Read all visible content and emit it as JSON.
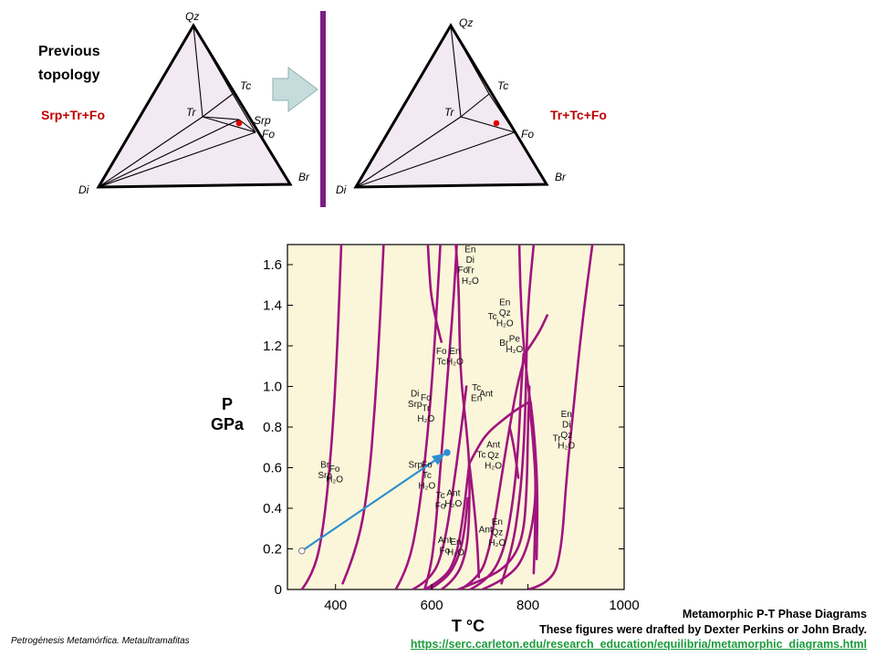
{
  "ternary": {
    "left_heading_line1": "Previous",
    "left_heading_line2": "topology",
    "left_assemblage": "Srp+Tr+Fo",
    "right_assemblage": "Tr+Tc+Fo",
    "vertices": {
      "top": "Qz",
      "left": "Di",
      "right": "Br"
    },
    "phase_labels": {
      "tc": "Tc",
      "tr": "Tr",
      "srp": "Srp",
      "fo": "Fo"
    },
    "colors": {
      "fill": "#f3e9f3",
      "assemblage_text": "#c00000",
      "divider": "#7b1f82",
      "arrow": "#c6dcdc",
      "point": "#e00000"
    }
  },
  "chart_data": {
    "type": "line",
    "title": "",
    "xlabel": "T °C",
    "ylabel_line1": "P",
    "ylabel_line2": "GPa",
    "xlim": [
      300,
      1000
    ],
    "ylim": [
      0,
      1.7
    ],
    "x_ticks": [
      400,
      600,
      800,
      1000
    ],
    "x_tick_labels": [
      "400",
      "600",
      "800",
      "1000"
    ],
    "y_ticks": [
      0,
      0.2,
      0.4,
      0.6,
      0.8,
      1.0,
      1.2,
      1.4,
      1.6
    ],
    "y_tick_labels": [
      "0",
      "0.2",
      "0.4",
      "0.6",
      "0.8",
      "1.0",
      "1.2",
      "1.4",
      "1.6"
    ],
    "grid": false,
    "colors": {
      "background": "#fbf6d9",
      "curve": "#a0147e",
      "path": "#2e8fd0"
    },
    "curves": [
      {
        "points": [
          [
            330,
            0
          ],
          [
            355,
            0.08
          ],
          [
            375,
            0.3
          ],
          [
            392,
            0.7
          ],
          [
            404,
            1.2
          ],
          [
            412,
            1.7
          ]
        ]
      },
      {
        "points": [
          [
            415,
            0.03
          ],
          [
            445,
            0.2
          ],
          [
            468,
            0.5
          ],
          [
            482,
            0.9
          ],
          [
            492,
            1.3
          ],
          [
            500,
            1.7
          ]
        ]
      },
      {
        "points": [
          [
            525,
            0
          ],
          [
            550,
            0.1
          ],
          [
            572,
            0.35
          ],
          [
            590,
            0.72
          ],
          [
            603,
            1.1
          ],
          [
            612,
            1.45
          ],
          [
            618,
            1.7
          ]
        ]
      },
      {
        "points": [
          [
            585,
            0
          ],
          [
            598,
            0.1
          ],
          [
            608,
            0.3
          ],
          [
            618,
            0.6
          ],
          [
            628,
            0.9
          ],
          [
            638,
            1.2
          ],
          [
            646,
            1.45
          ],
          [
            652,
            1.7
          ]
        ]
      },
      {
        "points": [
          [
            560,
            0
          ],
          [
            600,
            0.05
          ],
          [
            625,
            0.2
          ],
          [
            645,
            0.5
          ],
          [
            662,
            0.8
          ],
          [
            672,
            1.0
          ]
        ]
      },
      {
        "points": [
          [
            585,
            0
          ],
          [
            625,
            0.05
          ],
          [
            650,
            0.15
          ],
          [
            665,
            0.35
          ],
          [
            678,
            0.62
          ]
        ]
      },
      {
        "points": [
          [
            595,
            0
          ],
          [
            630,
            0.05
          ],
          [
            655,
            0.15
          ],
          [
            668,
            0.28
          ],
          [
            675,
            0.45
          ]
        ]
      },
      {
        "points": [
          [
            620,
            0
          ],
          [
            650,
            0.05
          ],
          [
            672,
            0.18
          ],
          [
            678,
            0.35
          ],
          [
            679,
            0.6
          ],
          [
            672,
            0.8
          ],
          [
            662,
            1.0
          ],
          [
            658,
            1.2
          ],
          [
            656,
            1.5
          ],
          [
            650,
            1.7
          ]
        ]
      },
      {
        "points": [
          [
            660,
            0
          ],
          [
            700,
            0.06
          ],
          [
            720,
            0.2
          ],
          [
            735,
            0.4
          ],
          [
            748,
            0.6
          ],
          [
            762,
            0.8
          ],
          [
            777,
            1.0
          ],
          [
            795,
            1.16
          ]
        ]
      },
      {
        "points": [
          [
            680,
            0
          ],
          [
            720,
            0.05
          ],
          [
            752,
            0.2
          ],
          [
            770,
            0.45
          ],
          [
            780,
            0.7
          ],
          [
            786,
            1.0
          ],
          [
            791,
            1.16
          ]
        ]
      },
      {
        "points": [
          [
            678,
            0.62
          ],
          [
            700,
            0.72
          ],
          [
            720,
            0.78
          ],
          [
            745,
            0.83
          ],
          [
            772,
            0.88
          ],
          [
            800,
            0.92
          ]
        ]
      },
      {
        "points": [
          [
            678,
            0.62
          ],
          [
            688,
            0.42
          ],
          [
            695,
            0.22
          ],
          [
            698,
            0.06
          ]
        ]
      },
      {
        "points": [
          [
            620,
            1.22
          ],
          [
            600,
            1.4
          ],
          [
            594,
            1.6
          ],
          [
            592,
            1.7
          ]
        ]
      },
      {
        "points": [
          [
            745,
            0.03
          ],
          [
            768,
            0.2
          ],
          [
            783,
            0.45
          ],
          [
            790,
            0.65
          ],
          [
            795,
            0.9
          ],
          [
            797,
            1.16
          ],
          [
            800,
            1.4
          ],
          [
            812,
            1.7
          ]
        ]
      },
      {
        "points": [
          [
            793,
            1.16
          ],
          [
            800,
            1.0
          ],
          [
            810,
            0.85
          ],
          [
            818,
            0.6
          ],
          [
            820,
            0.4
          ],
          [
            818,
            0.15
          ]
        ]
      },
      {
        "points": [
          [
            806,
            0.92
          ],
          [
            812,
            0.75
          ],
          [
            816,
            0.55
          ],
          [
            815,
            0.3
          ],
          [
            812,
            0.08
          ]
        ]
      },
      {
        "points": [
          [
            793,
            1.16
          ],
          [
            788,
            1.3
          ],
          [
            784,
            1.5
          ],
          [
            782,
            1.7
          ]
        ]
      },
      {
        "points": [
          [
            793,
            1.16
          ],
          [
            820,
            1.25
          ],
          [
            840,
            1.35
          ]
        ]
      },
      {
        "points": [
          [
            655,
            0
          ],
          [
            710,
            0.05
          ],
          [
            760,
            0.12
          ],
          [
            790,
            0.25
          ],
          [
            798,
            0.5
          ],
          [
            800,
            0.8
          ],
          [
            803,
            1.0
          ]
        ]
      },
      {
        "points": [
          [
            705,
            0
          ],
          [
            765,
            0.06
          ],
          [
            800,
            0.2
          ],
          [
            818,
            0.45
          ],
          [
            812,
            0.7
          ],
          [
            803,
            0.92
          ]
        ]
      },
      {
        "points": [
          [
            800,
            0
          ],
          [
            850,
            0.03
          ],
          [
            870,
            0.2
          ],
          [
            880,
            0.55
          ],
          [
            895,
            0.9
          ],
          [
            912,
            1.3
          ],
          [
            934,
            1.7
          ]
        ]
      },
      {
        "points": [
          [
            762,
            0.8
          ],
          [
            770,
            0.72
          ],
          [
            780,
            0.55
          ]
        ]
      }
    ],
    "path": {
      "start": [
        330,
        0.19
      ],
      "end": [
        628,
        0.67
      ]
    },
    "annotations": [
      {
        "lines": [
          "Br",
          "Srp"
        ],
        "x": 378,
        "y": 0.6
      },
      {
        "lines": [
          "Fo",
          "H2O"
        ],
        "x": 398,
        "y": 0.58
      },
      {
        "lines": [
          "Di",
          "Srp"
        ],
        "x": 565,
        "y": 0.95
      },
      {
        "lines": [
          "Fo",
          "Tr",
          "H2O"
        ],
        "x": 588,
        "y": 0.93
      },
      {
        "lines": [
          "Srp"
        ],
        "x": 566,
        "y": 0.6
      },
      {
        "lines": [
          "Fo",
          "Tc",
          "H2O"
        ],
        "x": 590,
        "y": 0.6
      },
      {
        "lines": [
          "En",
          "Di",
          "Tr",
          "H2O"
        ],
        "x": 680,
        "y": 1.66
      },
      {
        "lines": [
          "Fo"
        ],
        "x": 665,
        "y": 1.56
      },
      {
        "lines": [
          "Fo",
          "Tc"
        ],
        "x": 620,
        "y": 1.16
      },
      {
        "lines": [
          "En",
          "H2O"
        ],
        "x": 648,
        "y": 1.16
      },
      {
        "lines": [
          "Tc"
        ],
        "x": 726,
        "y": 1.33
      },
      {
        "lines": [
          "En",
          "Qz",
          "H2O"
        ],
        "x": 752,
        "y": 1.4
      },
      {
        "lines": [
          "Tc",
          "En"
        ],
        "x": 693,
        "y": 0.98
      },
      {
        "lines": [
          "Ant"
        ],
        "x": 713,
        "y": 0.95
      },
      {
        "lines": [
          "Br"
        ],
        "x": 750,
        "y": 1.2
      },
      {
        "lines": [
          "Pe",
          "H2O"
        ],
        "x": 772,
        "y": 1.22
      },
      {
        "lines": [
          "Tc"
        ],
        "x": 703,
        "y": 0.65
      },
      {
        "lines": [
          "Ant",
          "Qz",
          "H2O"
        ],
        "x": 728,
        "y": 0.7
      },
      {
        "lines": [
          "Tc",
          "Fo"
        ],
        "x": 618,
        "y": 0.45
      },
      {
        "lines": [
          "Ant",
          "H2O"
        ],
        "x": 645,
        "y": 0.46
      },
      {
        "lines": [
          "Ant"
        ],
        "x": 712,
        "y": 0.28
      },
      {
        "lines": [
          "En",
          "Qz",
          "H2O"
        ],
        "x": 736,
        "y": 0.32
      },
      {
        "lines": [
          "Ant",
          "Fo"
        ],
        "x": 627,
        "y": 0.23
      },
      {
        "lines": [
          "En",
          "H2O"
        ],
        "x": 650,
        "y": 0.22
      },
      {
        "lines": [
          "En",
          "Di",
          "Qz",
          "H2O"
        ],
        "x": 880,
        "y": 0.85
      },
      {
        "lines": [
          "Tr"
        ],
        "x": 860,
        "y": 0.73
      }
    ]
  },
  "credit": {
    "title": "Metamorphic P-T Phase Diagrams",
    "authors": "These figures were drafted by Dexter Perkins or John Brady.",
    "link": "https://serc.carleton.edu/research_education/equilibria/metamorphic_diagrams.html"
  },
  "footer": "Petrogénesis Metamórfica. Metaultramafitas"
}
